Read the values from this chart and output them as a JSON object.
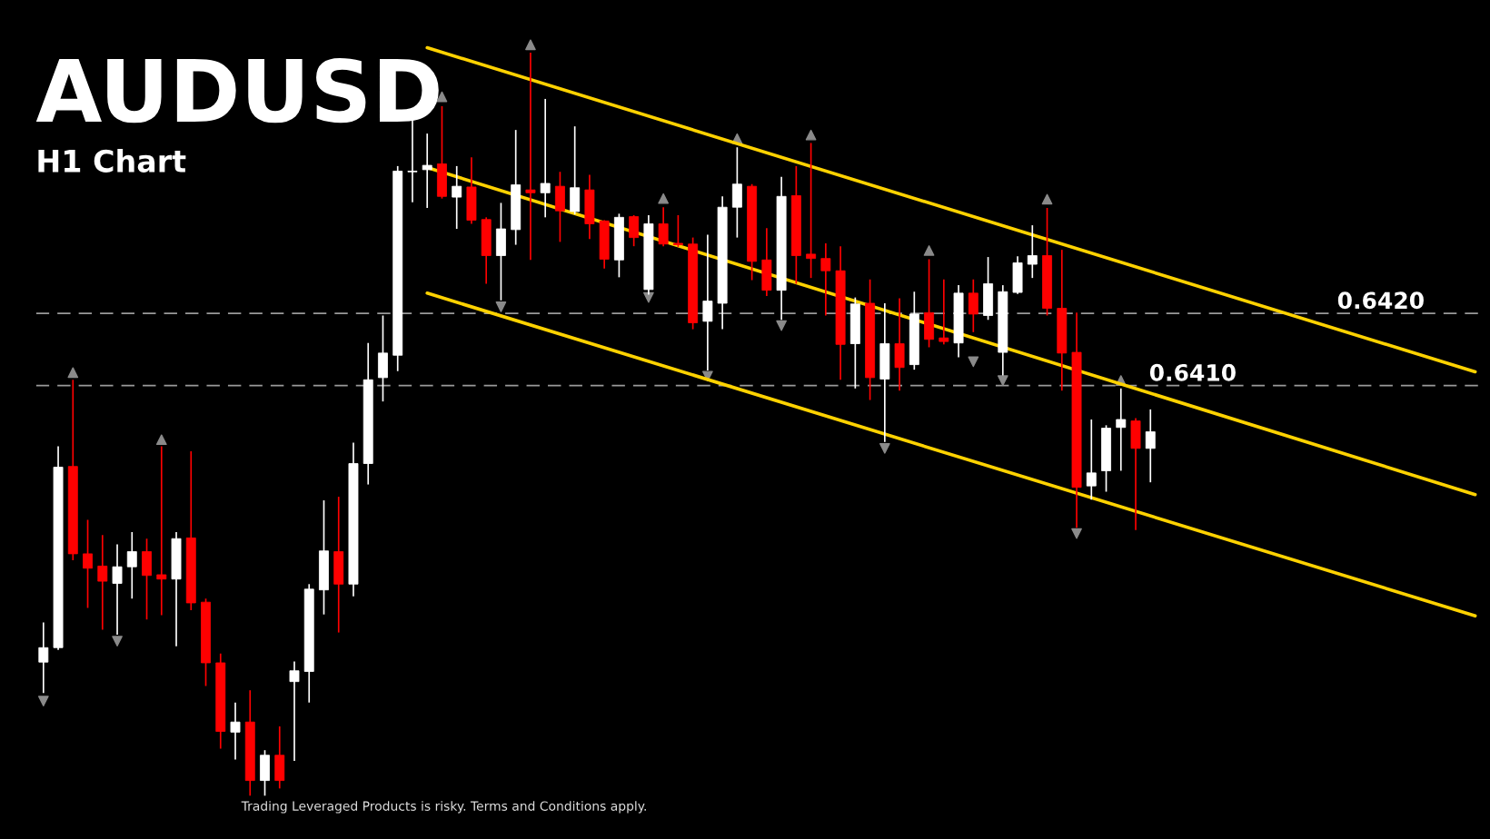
{
  "chart_data": {
    "type": "candlestick",
    "title": "AUDUSD",
    "subtitle": "H1 Chart",
    "annotations": [
      "Trading Leveraged Products is risky. Terms and Conditions apply."
    ],
    "categories": [
      null,
      null,
      null,
      null,
      null,
      null,
      null,
      null,
      null,
      null,
      null,
      null,
      null,
      null,
      null,
      null,
      null,
      null,
      null,
      null,
      null,
      null,
      null,
      null,
      null,
      null,
      null,
      null,
      null,
      null,
      null,
      null,
      null,
      null,
      null,
      null,
      null,
      null,
      null,
      null,
      null,
      null,
      null,
      null,
      null,
      null,
      null,
      null,
      null,
      null,
      null,
      null,
      null,
      null,
      null,
      null,
      null,
      null,
      null,
      null,
      null,
      null,
      null,
      null,
      null,
      null,
      null,
      null,
      null,
      null,
      null,
      null,
      null,
      null,
      null,
      null,
      null,
      null,
      null,
      null,
      null,
      null,
      null,
      null,
      null,
      null,
      null,
      null,
      null,
      null,
      null,
      null,
      null,
      null,
      null,
      null,
      null,
      null
    ],
    "ohlc": [
      [
        0.63717,
        0.63772,
        0.63674,
        0.63737
      ],
      [
        0.63737,
        0.64016,
        0.63734,
        0.63987
      ],
      [
        0.63988,
        0.64108,
        0.63858,
        0.63867
      ],
      [
        0.63867,
        0.63914,
        0.63792,
        0.63847
      ],
      [
        0.6385,
        0.63893,
        0.63762,
        0.63829
      ],
      [
        0.63826,
        0.6388,
        0.63755,
        0.63849
      ],
      [
        0.63849,
        0.63897,
        0.63805,
        0.6387
      ],
      [
        0.6387,
        0.63888,
        0.63776,
        0.63837
      ],
      [
        0.63838,
        0.64016,
        0.63782,
        0.63832
      ],
      [
        0.63832,
        0.63897,
        0.63739,
        0.63888
      ],
      [
        0.63889,
        0.64009,
        0.63789,
        0.63799
      ],
      [
        0.638,
        0.63805,
        0.63684,
        0.63716
      ],
      [
        0.63716,
        0.63729,
        0.63597,
        0.63621
      ],
      [
        0.6362,
        0.63661,
        0.63582,
        0.63634
      ],
      [
        0.63634,
        0.63678,
        0.63532,
        0.63553
      ],
      [
        0.63553,
        0.63595,
        0.63532,
        0.63588
      ],
      [
        0.63588,
        0.63628,
        0.63542,
        0.63553
      ],
      [
        0.6369,
        0.63718,
        0.6358,
        0.63705
      ],
      [
        0.63704,
        0.63825,
        0.63661,
        0.63818
      ],
      [
        0.63817,
        0.63941,
        0.63783,
        0.63871
      ],
      [
        0.6387,
        0.63946,
        0.63758,
        0.63825
      ],
      [
        0.63825,
        0.64021,
        0.63808,
        0.63992
      ],
      [
        0.63992,
        0.64159,
        0.63963,
        0.64108
      ],
      [
        0.64111,
        0.64197,
        0.64078,
        0.64145
      ],
      [
        0.64142,
        0.64404,
        0.6412,
        0.64397
      ],
      [
        0.64396,
        0.64471,
        0.64354,
        0.64397
      ],
      [
        0.64399,
        0.64449,
        0.64346,
        0.64405
      ],
      [
        0.64407,
        0.64487,
        0.64359,
        0.64362
      ],
      [
        0.64361,
        0.64404,
        0.64317,
        0.64376
      ],
      [
        0.64375,
        0.64416,
        0.64324,
        0.64329
      ],
      [
        0.6433,
        0.64333,
        0.64241,
        0.6428
      ],
      [
        0.6428,
        0.64353,
        0.64218,
        0.64317
      ],
      [
        0.64316,
        0.64454,
        0.64295,
        0.64378
      ],
      [
        0.64371,
        0.64561,
        0.64274,
        0.64367
      ],
      [
        0.64367,
        0.64497,
        0.64333,
        0.6438
      ],
      [
        0.64376,
        0.64396,
        0.64299,
        0.64342
      ],
      [
        0.64341,
        0.64459,
        0.64337,
        0.64374
      ],
      [
        0.64371,
        0.64392,
        0.64303,
        0.64324
      ],
      [
        0.64328,
        0.64329,
        0.64262,
        0.64275
      ],
      [
        0.64274,
        0.64338,
        0.6425,
        0.64333
      ],
      [
        0.64334,
        0.64336,
        0.64293,
        0.64305
      ],
      [
        0.64233,
        0.64336,
        0.64226,
        0.64324
      ],
      [
        0.64324,
        0.64347,
        0.64293,
        0.64296
      ],
      [
        0.64297,
        0.64336,
        0.64292,
        0.64295
      ],
      [
        0.64296,
        0.64305,
        0.64178,
        0.64187
      ],
      [
        0.64189,
        0.64309,
        0.64121,
        0.64217
      ],
      [
        0.64214,
        0.64362,
        0.64178,
        0.64347
      ],
      [
        0.64347,
        0.6443,
        0.64305,
        0.64379
      ],
      [
        0.64376,
        0.64379,
        0.64246,
        0.64272
      ],
      [
        0.64274,
        0.64318,
        0.64224,
        0.64232
      ],
      [
        0.64232,
        0.64389,
        0.64191,
        0.64362
      ],
      [
        0.64363,
        0.64404,
        0.64241,
        0.6428
      ],
      [
        0.64282,
        0.64436,
        0.64249,
        0.64276
      ],
      [
        0.64276,
        0.64297,
        0.64197,
        0.64259
      ],
      [
        0.64259,
        0.64293,
        0.64108,
        0.64157
      ],
      [
        0.64158,
        0.64222,
        0.64096,
        0.64213
      ],
      [
        0.64214,
        0.64247,
        0.6408,
        0.64111
      ],
      [
        0.64109,
        0.64214,
        0.64022,
        0.64158
      ],
      [
        0.64158,
        0.64221,
        0.64093,
        0.64125
      ],
      [
        0.64129,
        0.6423,
        0.64122,
        0.64199
      ],
      [
        0.64201,
        0.64275,
        0.64153,
        0.64164
      ],
      [
        0.64166,
        0.64247,
        0.64157,
        0.64161
      ],
      [
        0.64159,
        0.64239,
        0.64139,
        0.64228
      ],
      [
        0.64228,
        0.64247,
        0.64174,
        0.64199
      ],
      [
        0.64197,
        0.64278,
        0.64191,
        0.64241
      ],
      [
        0.64146,
        0.64239,
        0.64114,
        0.6423
      ],
      [
        0.64229,
        0.64279,
        0.64227,
        0.6427
      ],
      [
        0.64268,
        0.64322,
        0.64249,
        0.6428
      ],
      [
        0.6428,
        0.64346,
        0.64197,
        0.64207
      ],
      [
        0.64207,
        0.64288,
        0.64093,
        0.64145
      ],
      [
        0.64146,
        0.64201,
        0.63903,
        0.63959
      ],
      [
        0.63961,
        0.64053,
        0.63942,
        0.63979
      ],
      [
        0.63982,
        0.64045,
        0.63953,
        0.64041
      ],
      [
        0.64042,
        0.64096,
        0.63982,
        0.64053
      ],
      [
        0.64051,
        0.64055,
        0.639,
        0.64013
      ],
      [
        0.64013,
        0.64067,
        0.63966,
        0.64036
      ],
      null,
      null,
      null,
      null,
      null,
      null,
      null,
      null,
      null,
      null,
      null,
      null,
      null,
      null,
      null,
      null,
      null,
      null,
      null,
      null,
      null,
      null
    ],
    "series": [
      {
        "type": "line",
        "color": "#ffd200",
        "values": [
          null,
          null,
          null,
          null,
          null,
          null,
          null,
          null,
          null,
          null,
          null,
          null,
          null,
          null,
          null,
          null,
          null,
          null,
          null,
          null,
          null,
          null,
          null,
          null,
          null,
          null,
          0.64568,
          null,
          null,
          null,
          null,
          null,
          null,
          null,
          null,
          null,
          null,
          null,
          null,
          null,
          null,
          null,
          null,
          null,
          null,
          null,
          null,
          null,
          null,
          null,
          null,
          null,
          null,
          null,
          null,
          null,
          null,
          null,
          null,
          null,
          null,
          null,
          null,
          null,
          null,
          null,
          null,
          null,
          null,
          null,
          null,
          null,
          null,
          null,
          null,
          null,
          null,
          null,
          null,
          null,
          null,
          null,
          null,
          null,
          null,
          null,
          null,
          null,
          null,
          null,
          null,
          null,
          null,
          null,
          null,
          null,
          null,
          0.64119
        ]
      },
      {
        "type": "line",
        "color": "#ffd200",
        "values": [
          null,
          null,
          null,
          null,
          null,
          null,
          null,
          null,
          null,
          null,
          null,
          null,
          null,
          null,
          null,
          null,
          null,
          null,
          null,
          null,
          null,
          null,
          null,
          null,
          null,
          null,
          0.64402,
          null,
          null,
          null,
          null,
          null,
          null,
          null,
          null,
          null,
          null,
          null,
          null,
          null,
          null,
          null,
          null,
          null,
          null,
          null,
          null,
          null,
          null,
          null,
          null,
          null,
          null,
          null,
          null,
          null,
          null,
          null,
          null,
          null,
          null,
          null,
          null,
          null,
          null,
          null,
          null,
          null,
          null,
          null,
          null,
          null,
          null,
          null,
          null,
          null,
          null,
          null,
          null,
          null,
          null,
          null,
          null,
          null,
          null,
          null,
          null,
          null,
          null,
          null,
          null,
          null,
          null,
          null,
          null,
          null,
          null,
          0.63949
        ]
      },
      {
        "type": "line",
        "color": "#ffd200",
        "values": [
          null,
          null,
          null,
          null,
          null,
          null,
          null,
          null,
          null,
          null,
          null,
          null,
          null,
          null,
          null,
          null,
          null,
          null,
          null,
          null,
          null,
          null,
          null,
          null,
          null,
          null,
          0.64228,
          null,
          null,
          null,
          null,
          null,
          null,
          null,
          null,
          null,
          null,
          null,
          null,
          null,
          null,
          null,
          null,
          null,
          null,
          null,
          null,
          null,
          null,
          null,
          null,
          null,
          null,
          null,
          null,
          null,
          null,
          null,
          null,
          null,
          null,
          null,
          null,
          null,
          null,
          null,
          null,
          null,
          null,
          null,
          null,
          null,
          null,
          null,
          null,
          null,
          null,
          null,
          null,
          null,
          null,
          null,
          null,
          null,
          null,
          null,
          null,
          null,
          null,
          null,
          null,
          null,
          null,
          null,
          null,
          null,
          null,
          0.63781
        ]
      },
      {
        "type": "scatter",
        "color": "#8a8a8a",
        "marker": "triangle",
        "values": [
          null,
          null,
          0.64118,
          null,
          null,
          null,
          null,
          null,
          0.64025,
          null,
          null,
          null,
          null,
          null,
          null,
          null,
          null,
          null,
          null,
          null,
          null,
          null,
          null,
          null,
          null,
          null,
          null,
          0.645,
          null,
          null,
          null,
          null,
          null,
          0.64572,
          null,
          null,
          null,
          null,
          null,
          null,
          null,
          null,
          0.64359,
          null,
          null,
          null,
          null,
          0.64442,
          null,
          null,
          null,
          null,
          0.64447,
          null,
          null,
          null,
          null,
          null,
          null,
          null,
          0.64287,
          null,
          null,
          null,
          null,
          null,
          null,
          null,
          0.64358,
          null,
          null,
          null,
          null,
          0.64107,
          null,
          null,
          null,
          null,
          null,
          null,
          null,
          null,
          null,
          null,
          null,
          null,
          null,
          null,
          null,
          null,
          null,
          null,
          null,
          null,
          null,
          null,
          null,
          null
        ]
      },
      {
        "type": "scatter",
        "color": "#8a8a8a",
        "marker": "triangle_down",
        "values": [
          0.63663,
          null,
          null,
          null,
          null,
          0.63746,
          null,
          null,
          null,
          null,
          null,
          null,
          null,
          null,
          null,
          null,
          null,
          null,
          null,
          null,
          null,
          null,
          null,
          null,
          null,
          null,
          null,
          null,
          null,
          null,
          null,
          0.64209,
          null,
          null,
          null,
          null,
          null,
          null,
          null,
          null,
          null,
          0.64222,
          null,
          null,
          null,
          0.64113,
          null,
          null,
          null,
          null,
          0.64183,
          null,
          null,
          null,
          null,
          null,
          null,
          0.64013,
          null,
          null,
          null,
          null,
          null,
          0.64133,
          null,
          0.64107,
          null,
          null,
          null,
          null,
          0.63895,
          null,
          null,
          null,
          null,
          null,
          null,
          null,
          null,
          null,
          null,
          null,
          null,
          null,
          null,
          null,
          null,
          null,
          null,
          null,
          null,
          null,
          null,
          null,
          null,
          null,
          null,
          null
        ]
      }
    ],
    "ref_lines": [
      {
        "axis": "y",
        "value": 0.642,
        "label": "0.6420",
        "color": "#9a9a9a",
        "line_style": "dashed"
      },
      {
        "axis": "y",
        "value": 0.641,
        "label": "0.6410",
        "color": "#9a9a9a",
        "line_style": "dashed"
      }
    ],
    "ylim": [
      0.63472,
      0.64634
    ],
    "legend": false
  }
}
